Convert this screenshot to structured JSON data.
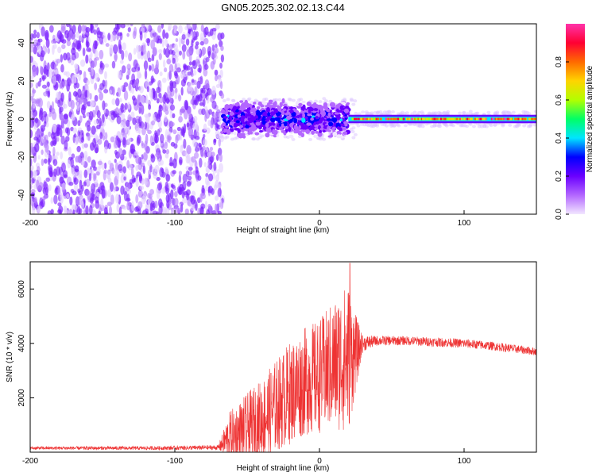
{
  "title": "GN05.2025.302.02.13.C44",
  "chart_data": [
    {
      "type": "heatmap",
      "xlabel": "Height of straight line (km)",
      "ylabel": "Frequency (Hz)",
      "xlim": [
        -200,
        150
      ],
      "ylim": [
        -50,
        50
      ],
      "xticks": [
        -200,
        -100,
        0,
        100
      ],
      "yticks": [
        -40,
        -20,
        0,
        20,
        40
      ],
      "colorbar": {
        "label": "Normalized spectral amplitude",
        "range": [
          0,
          1
        ],
        "ticks": [
          "0.0",
          "0.2",
          "0.4",
          "0.6",
          "0.8"
        ],
        "colors": [
          "#f2e6ff",
          "#b366ff",
          "#6a00ff",
          "#0000ff",
          "#00e5ff",
          "#00ff66",
          "#b2ff00",
          "#ffd400",
          "#ff6a00",
          "#ff0033",
          "#ff33aa"
        ]
      },
      "regions": [
        {
          "x": [
            -200,
            -67
          ],
          "freq": [
            -50,
            50
          ],
          "amp": [
            0.02,
            0.15
          ],
          "desc": "noise"
        },
        {
          "x": [
            -67,
            20
          ],
          "freq": [
            -10,
            10
          ],
          "amp": [
            0.1,
            0.4
          ]
        },
        {
          "x": [
            20,
            150
          ],
          "freq": [
            -1.5,
            1.5
          ],
          "amp": [
            0.6,
            1.0
          ]
        }
      ]
    },
    {
      "type": "line",
      "xlabel": "Height of straight line (km)",
      "ylabel": "SNR (10 * v/v)",
      "xlim": [
        -200,
        150
      ],
      "ylim": [
        0,
        7000
      ],
      "xticks": [
        -200,
        -100,
        0,
        100
      ],
      "yticks": [
        2000,
        4000,
        6000
      ],
      "color": "#ee3333",
      "envelope": {
        "x": [
          -200,
          -120,
          -70,
          -62,
          -55,
          -40,
          -30,
          -20,
          -10,
          0,
          10,
          20,
          26,
          30,
          40,
          60,
          80,
          100,
          120,
          150
        ],
        "mean": [
          150,
          150,
          170,
          600,
          700,
          1200,
          1700,
          2200,
          2600,
          2800,
          3200,
          3500,
          3700,
          4000,
          4100,
          4100,
          4050,
          4000,
          3900,
          3700
        ],
        "spread": [
          60,
          70,
          90,
          900,
          1200,
          1500,
          1700,
          1900,
          2000,
          2100,
          2400,
          2800,
          1200,
          300,
          180,
          170,
          170,
          170,
          160,
          150
        ]
      },
      "peak": {
        "x": 21,
        "y": 6950
      }
    }
  ]
}
